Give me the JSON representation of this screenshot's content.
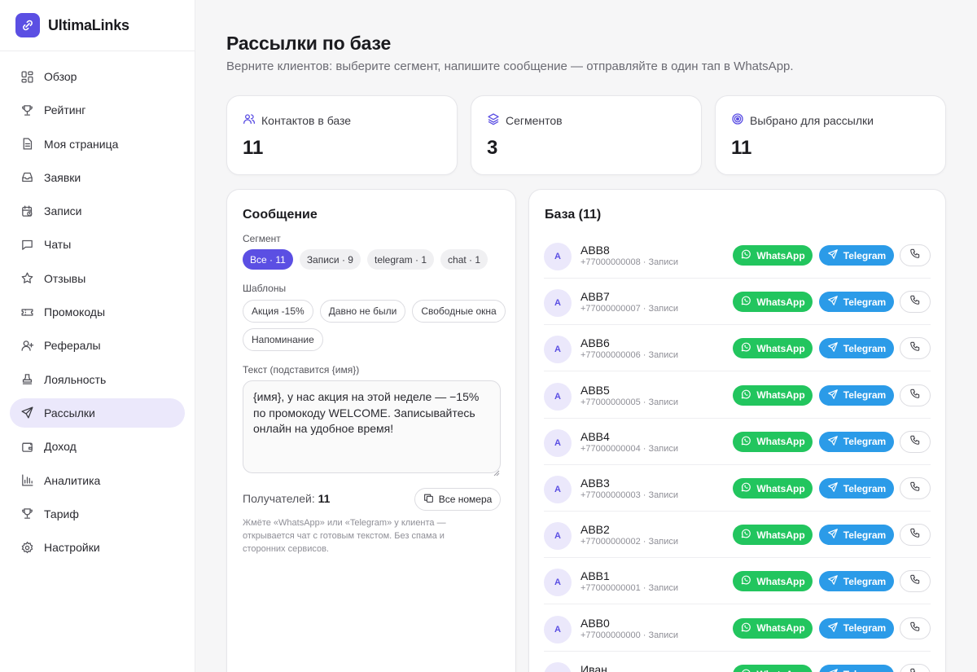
{
  "brand": {
    "name": "UltimaLinks"
  },
  "sidebar": {
    "items": [
      {
        "label": "Обзор",
        "icon": "dashboard-icon"
      },
      {
        "label": "Рейтинг",
        "icon": "trophy-icon"
      },
      {
        "label": "Моя страница",
        "icon": "page-icon"
      },
      {
        "label": "Заявки",
        "icon": "inbox-icon"
      },
      {
        "label": "Записи",
        "icon": "calendar-clock-icon"
      },
      {
        "label": "Чаты",
        "icon": "chat-icon"
      },
      {
        "label": "Отзывы",
        "icon": "star-icon"
      },
      {
        "label": "Промокоды",
        "icon": "ticket-icon"
      },
      {
        "label": "Рефералы",
        "icon": "user-plus-icon"
      },
      {
        "label": "Лояльность",
        "icon": "stamp-icon"
      },
      {
        "label": "Рассылки",
        "icon": "send-icon",
        "active": true
      },
      {
        "label": "Доход",
        "icon": "wallet-icon"
      },
      {
        "label": "Аналитика",
        "icon": "bar-chart-icon"
      },
      {
        "label": "Тариф",
        "icon": "trophy-icon"
      },
      {
        "label": "Настройки",
        "icon": "gear-icon"
      }
    ]
  },
  "page": {
    "title": "Рассылки по базе",
    "subtitle": "Верните клиентов: выберите сегмент, напишите сообщение — отправляйте в один тап в WhatsApp."
  },
  "stats": [
    {
      "label": "Контактов в базе",
      "value": "11",
      "icon": "users-icon"
    },
    {
      "label": "Сегментов",
      "value": "3",
      "icon": "layers-icon"
    },
    {
      "label": "Выбрано для рассылки",
      "value": "11",
      "icon": "target-icon"
    }
  ],
  "message": {
    "title": "Сообщение",
    "segment_label": "Сегмент",
    "segments": [
      {
        "label": "Все · 11",
        "active": true
      },
      {
        "label": "Записи · 9"
      },
      {
        "label": "telegram · 1"
      },
      {
        "label": "chat · 1"
      }
    ],
    "templates_label": "Шаблоны",
    "templates": [
      "Акция -15%",
      "Давно не были",
      "Свободные окна",
      "Напоминание"
    ],
    "text_label": "Текст (подставится {имя})",
    "text_value": "{имя}, у нас акция на этой неделе — −15% по промокоду WELCOME. Записывайтесь онлайн на удобное время!",
    "recipients_label": "Получателей:",
    "recipients_count": "11",
    "all_numbers_button": "Все номера",
    "hint": "Жмёте «WhatsApp» или «Telegram» у клиента — открывается чат с готовым текстом. Без спама и сторонних сервисов."
  },
  "base": {
    "title": "База (11)",
    "whatsapp_label": "WhatsApp",
    "telegram_label": "Telegram",
    "rows": [
      {
        "initial": "А",
        "name": "АВВ8",
        "meta": "+77000000008 · Записи"
      },
      {
        "initial": "А",
        "name": "АВВ7",
        "meta": "+77000000007 · Записи"
      },
      {
        "initial": "А",
        "name": "АВВ6",
        "meta": "+77000000006 · Записи"
      },
      {
        "initial": "А",
        "name": "АВВ5",
        "meta": "+77000000005 · Записи"
      },
      {
        "initial": "А",
        "name": "АВВ4",
        "meta": "+77000000004 · Записи"
      },
      {
        "initial": "А",
        "name": "АВВ3",
        "meta": "+77000000003 · Записи"
      },
      {
        "initial": "А",
        "name": "АВВ2",
        "meta": "+77000000002 · Записи"
      },
      {
        "initial": "А",
        "name": "АВВ1",
        "meta": "+77000000001 · Записи"
      },
      {
        "initial": "А",
        "name": "АВВ0",
        "meta": "+77000000000 · Записи"
      },
      {
        "initial": "И",
        "name": "Иван",
        "meta": ""
      }
    ]
  },
  "colors": {
    "accent": "#5b4fe3",
    "whatsapp": "#22c55e",
    "telegram": "#2b9be8"
  }
}
